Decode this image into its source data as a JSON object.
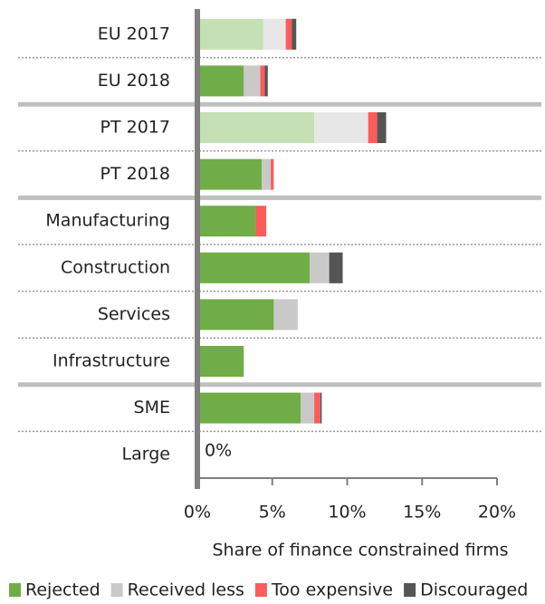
{
  "chart_data": {
    "type": "stacked_barh",
    "xlabel": "Share of finance constrained firms",
    "categories": [
      "EU 2017",
      "EU 2018",
      "PT 2017",
      "PT 2018",
      "Manufacturing",
      "Construction",
      "Services",
      "Infrastructure",
      "SME",
      "Large"
    ],
    "series": [
      {
        "name": "Rejected",
        "color": "#70ad47",
        "colors": [
          "#c5e0b4",
          "#70ad47",
          "#c5e0b4",
          "#70ad47",
          "#70ad47",
          "#70ad47",
          "#70ad47",
          "#70ad47",
          "#70ad47",
          "#70ad47"
        ],
        "values": [
          4.4,
          3.1,
          7.8,
          4.3,
          3.9,
          7.5,
          5.1,
          3.1,
          6.9,
          0
        ],
        "value_labels": [
          null,
          null,
          null,
          null,
          null,
          null,
          null,
          null,
          null,
          "0%"
        ]
      },
      {
        "name": "Received less",
        "color": "#c9c9c9",
        "colors": [
          "#e7e7e7",
          "#c9c9c9",
          "#e7e7e7",
          "#c9c9c9",
          "#c9c9c9",
          "#c9c9c9",
          "#c9c9c9",
          "#c9c9c9",
          "#c9c9c9",
          "#c9c9c9"
        ],
        "values": [
          1.5,
          1.1,
          3.6,
          0.6,
          0,
          1.3,
          1.6,
          0,
          0.9,
          0
        ]
      },
      {
        "name": "Too expensive",
        "color": "#ff5b5b",
        "colors": [
          "#ff5b5b",
          "#ff5b5b",
          "#ff5b5b",
          "#ff5b5b",
          "#ff5b5b",
          "#ff5b5b",
          "#ff5b5b",
          "#ff5b5b",
          "#ff5b5b",
          "#ff5b5b"
        ],
        "values": [
          0.4,
          0.3,
          0.6,
          0.2,
          0.7,
          0,
          0,
          0,
          0.4,
          0
        ]
      },
      {
        "name": "Discouraged",
        "color": "#555555",
        "colors": [
          "#555555",
          "#555555",
          "#555555",
          "#555555",
          "#555555",
          "#555555",
          "#555555",
          "#555555",
          "#555555",
          "#555555"
        ],
        "values": [
          0.3,
          0.2,
          0.6,
          0,
          0,
          0.9,
          0,
          0,
          0.1,
          0
        ]
      }
    ],
    "xlim": [
      0,
      20
    ],
    "xticks": [
      {
        "value": 0,
        "label": "0%"
      },
      {
        "value": 5,
        "label": "5%"
      },
      {
        "value": 10,
        "label": "10%"
      },
      {
        "value": 15,
        "label": "15%"
      },
      {
        "value": 20,
        "label": "20%"
      }
    ],
    "legend": "bottom"
  }
}
